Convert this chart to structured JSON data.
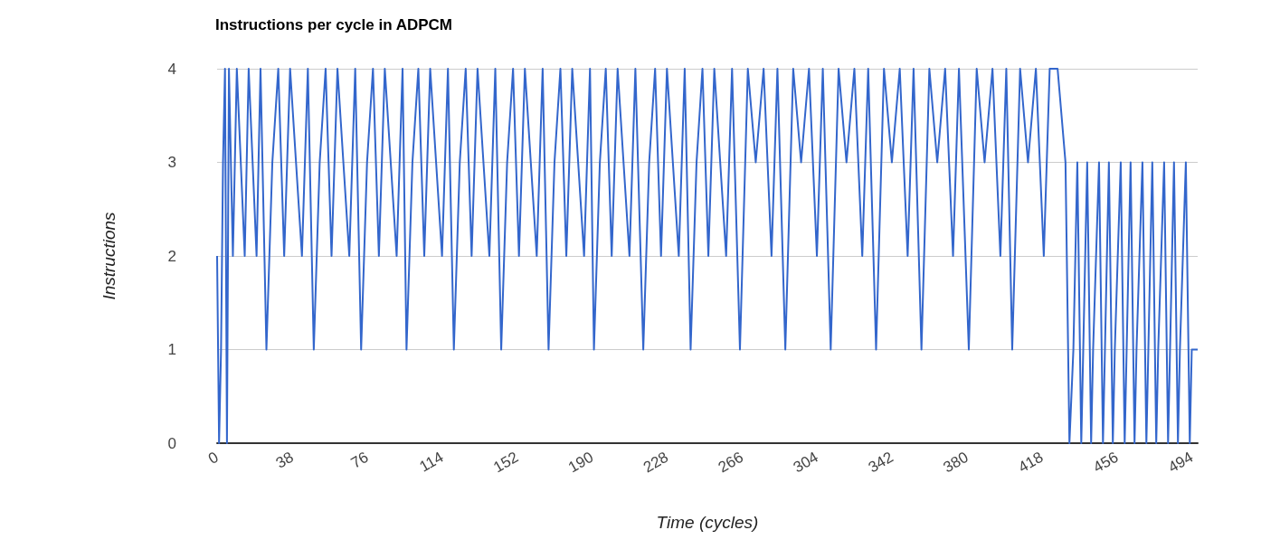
{
  "chart_data": {
    "type": "line",
    "title": "Instructions per cycle in ADPCM",
    "xlabel": "Time (cycles)",
    "ylabel": "Instructions",
    "color": "#3366cc",
    "marker": "none",
    "line_style": "solid",
    "grid": "y",
    "xlim": [
      0,
      497
    ],
    "xticks": [
      0,
      38,
      76,
      114,
      152,
      190,
      228,
      266,
      304,
      342,
      380,
      418,
      456,
      494
    ],
    "ylim": [
      0,
      4
    ],
    "yticks": [
      0,
      1,
      2,
      3,
      4
    ],
    "x": [
      0,
      1,
      2,
      3,
      4,
      5,
      6,
      8,
      10,
      12,
      14,
      16,
      18,
      20,
      22,
      25,
      28,
      31,
      34,
      37,
      40,
      43,
      46,
      49,
      52,
      55,
      58,
      61,
      64,
      67,
      70,
      73,
      76,
      79,
      82,
      85,
      88,
      91,
      94,
      96,
      99,
      102,
      105,
      108,
      111,
      114,
      117,
      120,
      123,
      126,
      129,
      132,
      135,
      138,
      141,
      144,
      147,
      150,
      153,
      156,
      159,
      162,
      165,
      168,
      171,
      174,
      177,
      180,
      183,
      186,
      189,
      191,
      194,
      197,
      200,
      203,
      206,
      209,
      212,
      216,
      219,
      222,
      225,
      228,
      231,
      234,
      237,
      240,
      243,
      246,
      249,
      252,
      255,
      258,
      261,
      265,
      269,
      273,
      277,
      281,
      284,
      288,
      292,
      296,
      300,
      304,
      307,
      311,
      315,
      319,
      323,
      327,
      330,
      334,
      338,
      342,
      346,
      350,
      353,
      357,
      361,
      365,
      369,
      373,
      376,
      381,
      385,
      389,
      393,
      397,
      400,
      403,
      407,
      411,
      415,
      419,
      422,
      426,
      430,
      432,
      434,
      436,
      438,
      439,
      441,
      443,
      444,
      447,
      449,
      450,
      452,
      454,
      455,
      458,
      460,
      461,
      463,
      465,
      466,
      469,
      471,
      472,
      474,
      476,
      477,
      480,
      482,
      483,
      485,
      487,
      488,
      491,
      493,
      494,
      497
    ],
    "values": [
      2,
      0,
      1,
      3,
      4,
      0,
      4,
      2,
      4,
      3,
      2,
      4,
      3,
      2,
      4,
      1,
      3,
      4,
      2,
      4,
      3,
      2,
      4,
      1,
      3,
      4,
      2,
      4,
      3,
      2,
      4,
      1,
      3,
      4,
      2,
      4,
      3,
      2,
      4,
      1,
      3,
      4,
      2,
      4,
      3,
      2,
      4,
      1,
      3,
      4,
      2,
      4,
      3,
      2,
      4,
      1,
      3,
      4,
      2,
      4,
      3,
      2,
      4,
      1,
      3,
      4,
      2,
      4,
      3,
      2,
      4,
      1,
      3,
      4,
      2,
      4,
      3,
      2,
      4,
      1,
      3,
      4,
      2,
      4,
      3,
      2,
      4,
      1,
      3,
      4,
      2,
      4,
      3,
      2,
      4,
      1,
      4,
      3,
      4,
      2,
      4,
      1,
      4,
      3,
      4,
      2,
      4,
      1,
      4,
      3,
      4,
      2,
      4,
      1,
      4,
      3,
      4,
      2,
      4,
      1,
      4,
      3,
      4,
      2,
      4,
      1,
      4,
      3,
      4,
      2,
      4,
      1,
      4,
      3,
      4,
      2,
      4,
      4,
      3,
      0,
      1,
      3,
      0,
      1,
      3,
      0,
      1,
      3,
      0,
      1,
      3,
      0,
      1,
      3,
      0,
      1,
      3,
      0,
      1,
      3,
      0,
      1,
      3,
      0,
      1,
      3,
      0,
      1,
      3,
      0,
      1,
      3,
      0,
      1,
      1
    ]
  }
}
